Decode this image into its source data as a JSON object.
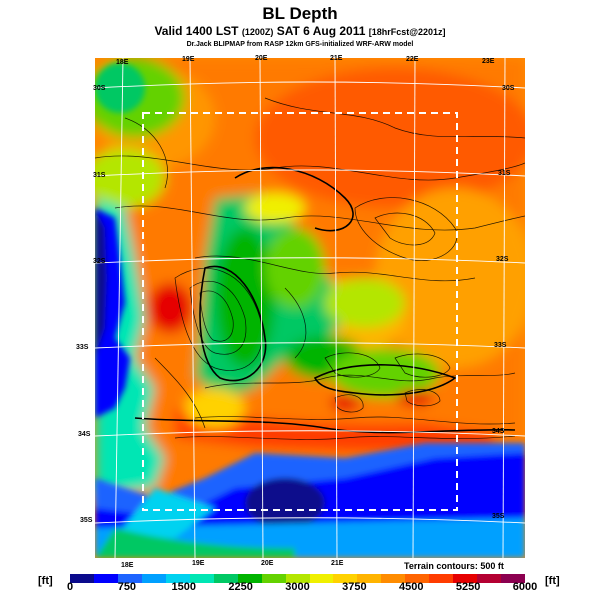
{
  "title": "BL Depth",
  "subtitle_main": "Valid 1400 LST",
  "subtitle_mid": "(1200Z)",
  "subtitle_date": "SAT 6 Aug 2011",
  "subtitle_fcst": "[18hrFcst@2201z]",
  "credit": "Dr.Jack BLIPMAP from RASP 12km GFS-initialized WRF-ARW model",
  "terrain_note": "Terrain contours: 500 ft",
  "unit_label": "[ft]",
  "top_lon_labels": [
    "18E",
    "19E",
    "20E",
    "21E",
    "22E",
    "23E"
  ],
  "bottom_lon_labels": [
    "18E",
    "19E",
    "20E",
    "21E"
  ],
  "left_lat_labels": [
    "30S",
    "31S",
    "32S",
    "33S",
    "34S",
    "35S"
  ],
  "right_lat_labels": [
    "30S",
    "31S",
    "32S",
    "33S",
    "34S",
    "35S"
  ],
  "legend_ticks": [
    "0",
    "750",
    "1500",
    "2250",
    "3000",
    "3750",
    "4500",
    "5250",
    "6000"
  ],
  "legend_colors": [
    "#0a0a8c",
    "#0000ff",
    "#1e64ff",
    "#00a0ff",
    "#00d2f0",
    "#00e6b4",
    "#00c864",
    "#00b400",
    "#64d200",
    "#b4e600",
    "#f0f000",
    "#ffd200",
    "#ffb400",
    "#ff8c00",
    "#ff6400",
    "#ff3c00",
    "#e60000",
    "#b40032",
    "#8c0050"
  ]
}
